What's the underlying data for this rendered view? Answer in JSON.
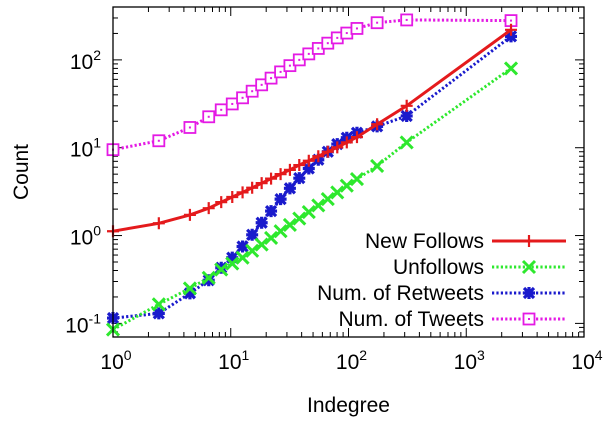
{
  "chart_data": {
    "type": "line",
    "xscale": "log",
    "yscale": "log",
    "xlabel": "Indegree",
    "ylabel": "Count",
    "xlim": [
      1,
      10000
    ],
    "ylim": [
      0.07,
      400
    ],
    "x_ticks": [
      {
        "value": 1,
        "base": "10",
        "exp": "0"
      },
      {
        "value": 10,
        "base": "10",
        "exp": "1"
      },
      {
        "value": 100,
        "base": "10",
        "exp": "2"
      },
      {
        "value": 1000,
        "base": "10",
        "exp": "3"
      },
      {
        "value": 10000,
        "base": "10",
        "exp": "4"
      }
    ],
    "y_ticks": [
      {
        "value": 0.1,
        "base": "10",
        "exp": "-1"
      },
      {
        "value": 1,
        "base": "10",
        "exp": "0"
      },
      {
        "value": 10,
        "base": "10",
        "exp": "1"
      },
      {
        "value": 100,
        "base": "10",
        "exp": "2"
      }
    ],
    "legend_position": "bottom-right",
    "series": [
      {
        "name": "New Follows",
        "color": "#e41a1c",
        "dash": "solid",
        "marker": "plus",
        "x": [
          1,
          2.45,
          4.5,
          6.5,
          8.3,
          10.3,
          12.6,
          15.2,
          18.3,
          22,
          26.5,
          31.8,
          38.2,
          46,
          55.4,
          66.7,
          80.3,
          96.7,
          118,
          175,
          312,
          2400
        ],
        "y": [
          1.12,
          1.38,
          1.72,
          2.05,
          2.4,
          2.75,
          3.1,
          3.5,
          3.95,
          4.45,
          5.0,
          5.6,
          6.35,
          7.1,
          8.0,
          9.0,
          10.1,
          11.5,
          13.2,
          18.5,
          30,
          220
        ]
      },
      {
        "name": "Unfollows",
        "color": "#2ee82e",
        "dash": "dotted",
        "marker": "cross",
        "x": [
          1,
          2.45,
          4.5,
          6.5,
          8.3,
          10.3,
          12.6,
          15.2,
          18.3,
          22,
          26.5,
          31.8,
          38.2,
          46,
          55.4,
          66.7,
          80.3,
          96.7,
          118,
          175,
          312,
          2400
        ],
        "y": [
          0.085,
          0.165,
          0.25,
          0.33,
          0.41,
          0.48,
          0.56,
          0.67,
          0.79,
          0.94,
          1.12,
          1.32,
          1.56,
          1.85,
          2.2,
          2.6,
          3.1,
          3.7,
          4.4,
          6.2,
          11.5,
          80
        ]
      },
      {
        "name": "Num. of Retweets",
        "color": "#1a1acc",
        "dash": "dotted",
        "marker": "star",
        "x": [
          1,
          2.45,
          4.5,
          6.5,
          8.3,
          10.3,
          12.6,
          15.2,
          18.3,
          22,
          26.5,
          31.8,
          38.2,
          46,
          55.4,
          66.7,
          80.3,
          96.7,
          118,
          175,
          312,
          2400
        ],
        "y": [
          0.115,
          0.13,
          0.22,
          0.31,
          0.43,
          0.56,
          0.75,
          1.02,
          1.4,
          1.9,
          2.6,
          3.45,
          4.5,
          5.8,
          7.3,
          9.0,
          11.0,
          13.0,
          14.8,
          17.5,
          23,
          185
        ]
      },
      {
        "name": "Num. of Tweets",
        "color": "#e41ae4",
        "dash": "dotted",
        "marker": "square",
        "x": [
          1,
          2.45,
          4.5,
          6.5,
          8.3,
          10.3,
          12.6,
          15.2,
          18.3,
          22,
          26.5,
          31.8,
          38.2,
          46,
          55.4,
          66.7,
          80.3,
          96.7,
          118,
          175,
          312,
          2400
        ],
        "y": [
          9.5,
          12,
          17,
          22.5,
          27,
          31.5,
          37,
          44,
          52,
          62,
          73,
          86,
          100,
          117,
          135,
          155,
          178,
          202,
          228,
          265,
          285,
          280
        ]
      }
    ]
  }
}
